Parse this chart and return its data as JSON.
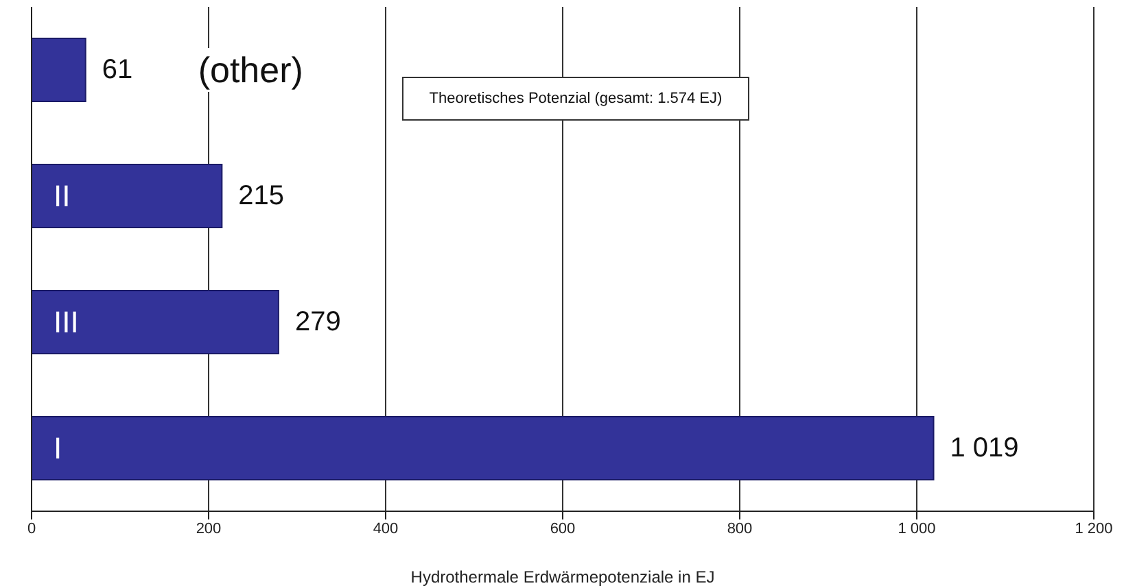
{
  "chart_data": {
    "type": "bar",
    "orientation": "horizontal",
    "xlabel": "Hydrothermale Erdwärmepotenziale in EJ",
    "categories": [
      "(other)",
      "II",
      "III",
      "I"
    ],
    "values": [
      61,
      215,
      279,
      1019
    ],
    "value_labels": [
      "61",
      "215",
      "279",
      "1 019"
    ],
    "color": "#333399",
    "xlim": [
      0,
      1200
    ],
    "xticks": [
      0,
      200,
      400,
      600,
      800,
      {
        "value": 1000,
        "label": "1 000"
      },
      {
        "value": 1200,
        "label": "1 200"
      }
    ],
    "grid": "x",
    "annotations": [
      "Theoretisches Potenzial (gesamt: 1.574 EJ)"
    ]
  }
}
